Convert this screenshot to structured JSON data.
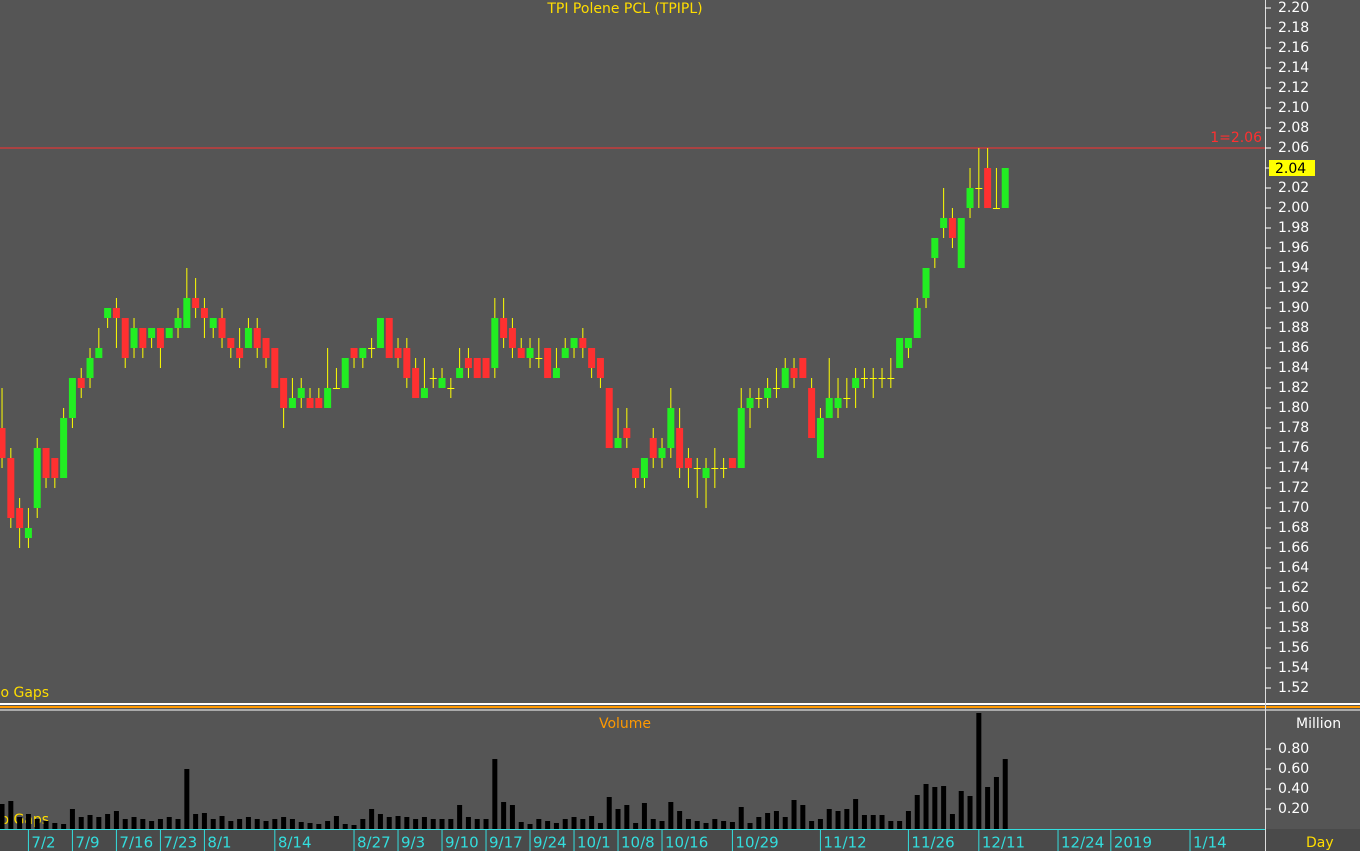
{
  "chart_data": [
    {
      "type": "candlestick",
      "title": "TPI Polene PCL (TPIPL)",
      "x": [
        0,
        1,
        2,
        3,
        4,
        5,
        6,
        7,
        8,
        9,
        10,
        11,
        12,
        13,
        14,
        15,
        16,
        17,
        18,
        19,
        20,
        21,
        22,
        23,
        24,
        25,
        26,
        27,
        28,
        29,
        30,
        31,
        32,
        33,
        34,
        35,
        36,
        37,
        38,
        39,
        40,
        41,
        42,
        43,
        44,
        45,
        46,
        47,
        48,
        49,
        50,
        51,
        52,
        53,
        54,
        55,
        56,
        57,
        58,
        59,
        60,
        61,
        62,
        63,
        64,
        65,
        66,
        67,
        68,
        69,
        70,
        71,
        72,
        73,
        74,
        75,
        76,
        77,
        78,
        79,
        80,
        81,
        82,
        83,
        84,
        85,
        86,
        87,
        88,
        89,
        90,
        91,
        92,
        93,
        94,
        95,
        96,
        97,
        98,
        99,
        100,
        101,
        102,
        103,
        104,
        105,
        106,
        107,
        108,
        109,
        110,
        111,
        112,
        113,
        114
      ],
      "open": [
        1.78,
        1.75,
        1.7,
        1.67,
        1.7,
        1.76,
        1.75,
        1.73,
        1.79,
        1.83,
        1.83,
        1.85,
        1.89,
        1.9,
        1.89,
        1.86,
        1.88,
        1.87,
        1.88,
        1.87,
        1.88,
        1.88,
        1.91,
        1.9,
        1.88,
        1.89,
        1.87,
        1.86,
        1.86,
        1.88,
        1.87,
        1.86,
        1.83,
        1.8,
        1.81,
        1.81,
        1.81,
        1.8,
        1.82,
        1.82,
        1.86,
        1.85,
        1.86,
        1.86,
        1.89,
        1.86,
        1.86,
        1.84,
        1.81,
        1.83,
        1.82,
        1.82,
        1.83,
        1.85,
        1.85,
        1.85,
        1.84,
        1.89,
        1.88,
        1.86,
        1.85,
        1.85,
        1.86,
        1.83,
        1.85,
        1.86,
        1.87,
        1.86,
        1.85,
        1.82,
        1.76,
        1.78,
        1.74,
        1.73,
        1.77,
        1.75,
        1.76,
        1.78,
        1.75,
        1.74,
        1.73,
        1.74,
        1.74,
        1.75,
        1.74,
        1.8,
        1.81,
        1.81,
        1.82,
        1.82,
        1.84,
        1.85,
        1.82,
        1.75,
        1.79,
        1.8,
        1.81,
        1.82,
        1.83,
        1.83,
        1.83,
        1.83,
        1.84,
        1.86,
        1.87,
        1.91,
        1.95,
        1.98,
        1.99,
        1.94,
        2.0,
        2.02,
        2.04,
        2.0,
        2.0
      ],
      "high": [
        1.82,
        1.76,
        1.71,
        1.7,
        1.77,
        1.76,
        1.75,
        1.8,
        1.83,
        1.84,
        1.86,
        1.88,
        1.9,
        1.91,
        1.89,
        1.89,
        1.88,
        1.88,
        1.88,
        1.88,
        1.9,
        1.94,
        1.93,
        1.91,
        1.89,
        1.9,
        1.87,
        1.88,
        1.89,
        1.89,
        1.87,
        1.86,
        1.83,
        1.83,
        1.83,
        1.82,
        1.82,
        1.86,
        1.84,
        1.85,
        1.86,
        1.86,
        1.87,
        1.89,
        1.89,
        1.87,
        1.87,
        1.85,
        1.85,
        1.84,
        1.84,
        1.83,
        1.86,
        1.86,
        1.85,
        1.85,
        1.91,
        1.91,
        1.89,
        1.87,
        1.87,
        1.87,
        1.86,
        1.86,
        1.87,
        1.87,
        1.88,
        1.86,
        1.85,
        1.82,
        1.8,
        1.8,
        1.74,
        1.75,
        1.78,
        1.77,
        1.82,
        1.8,
        1.76,
        1.75,
        1.75,
        1.76,
        1.75,
        1.75,
        1.82,
        1.82,
        1.82,
        1.83,
        1.84,
        1.85,
        1.85,
        1.85,
        1.83,
        1.8,
        1.85,
        1.83,
        1.83,
        1.84,
        1.84,
        1.84,
        1.84,
        1.85,
        1.87,
        1.87,
        1.91,
        1.94,
        1.97,
        2.02,
        2.0,
        1.99,
        2.04,
        2.06,
        2.06,
        2.04,
        2.04
      ],
      "low": [
        1.74,
        1.68,
        1.66,
        1.66,
        1.69,
        1.72,
        1.72,
        1.73,
        1.78,
        1.81,
        1.82,
        1.85,
        1.88,
        1.86,
        1.84,
        1.85,
        1.85,
        1.86,
        1.84,
        1.87,
        1.87,
        1.88,
        1.89,
        1.87,
        1.87,
        1.86,
        1.85,
        1.84,
        1.86,
        1.85,
        1.84,
        1.82,
        1.78,
        1.8,
        1.8,
        1.8,
        1.8,
        1.8,
        1.82,
        1.82,
        1.84,
        1.84,
        1.85,
        1.86,
        1.85,
        1.84,
        1.82,
        1.81,
        1.81,
        1.82,
        1.82,
        1.81,
        1.83,
        1.83,
        1.83,
        1.83,
        1.83,
        1.86,
        1.85,
        1.85,
        1.84,
        1.84,
        1.83,
        1.83,
        1.85,
        1.85,
        1.85,
        1.83,
        1.82,
        1.76,
        1.76,
        1.76,
        1.72,
        1.72,
        1.74,
        1.74,
        1.75,
        1.73,
        1.72,
        1.71,
        1.7,
        1.72,
        1.73,
        1.74,
        1.74,
        1.78,
        1.8,
        1.8,
        1.81,
        1.82,
        1.82,
        1.83,
        1.77,
        1.75,
        1.79,
        1.79,
        1.8,
        1.8,
        1.82,
        1.81,
        1.82,
        1.82,
        1.84,
        1.85,
        1.87,
        1.9,
        1.94,
        1.97,
        1.96,
        1.94,
        1.99,
        2.0,
        2.0,
        2.0,
        2.0
      ],
      "close": [
        1.75,
        1.69,
        1.68,
        1.68,
        1.76,
        1.73,
        1.73,
        1.79,
        1.83,
        1.82,
        1.85,
        1.86,
        1.9,
        1.89,
        1.85,
        1.88,
        1.86,
        1.88,
        1.86,
        1.88,
        1.89,
        1.91,
        1.9,
        1.89,
        1.89,
        1.87,
        1.86,
        1.85,
        1.88,
        1.86,
        1.85,
        1.82,
        1.8,
        1.81,
        1.82,
        1.8,
        1.8,
        1.82,
        1.82,
        1.85,
        1.85,
        1.86,
        1.86,
        1.89,
        1.85,
        1.85,
        1.83,
        1.81,
        1.82,
        1.83,
        1.83,
        1.82,
        1.84,
        1.84,
        1.83,
        1.83,
        1.89,
        1.87,
        1.86,
        1.85,
        1.86,
        1.85,
        1.83,
        1.84,
        1.86,
        1.87,
        1.86,
        1.84,
        1.83,
        1.76,
        1.77,
        1.77,
        1.73,
        1.75,
        1.75,
        1.76,
        1.8,
        1.74,
        1.74,
        1.74,
        1.74,
        1.74,
        1.74,
        1.74,
        1.8,
        1.81,
        1.81,
        1.82,
        1.82,
        1.84,
        1.83,
        1.83,
        1.77,
        1.79,
        1.81,
        1.81,
        1.81,
        1.83,
        1.83,
        1.83,
        1.83,
        1.83,
        1.87,
        1.87,
        1.9,
        1.94,
        1.97,
        1.99,
        1.97,
        1.99,
        2.02,
        2.02,
        2.0,
        2.0,
        2.04
      ],
      "up_color": "#22ee22",
      "down_color": "#ff3030",
      "wick_color": "#ffff00",
      "xlim": [
        -0.23,
        143.52
      ],
      "ylim": [
        1.505,
        2.208
      ],
      "yticks": [
        1.52,
        1.54,
        1.56,
        1.58,
        {
          "value": 1.6,
          "label": "1.60"
        },
        1.62,
        1.64,
        1.66,
        1.68,
        {
          "value": 1.7,
          "label": "1.70"
        },
        1.72,
        1.74,
        1.76,
        1.78,
        {
          "value": 1.8,
          "label": "1.80"
        },
        1.82,
        1.84,
        1.86,
        1.88,
        {
          "value": 1.9,
          "label": "1.90"
        },
        1.92,
        1.94,
        1.96,
        1.98,
        {
          "value": 2,
          "label": "2.00"
        },
        2.02,
        2.04,
        2.06,
        2.08,
        {
          "value": 2.1,
          "label": "2.10"
        },
        2.12,
        2.14,
        2.16,
        2.18,
        {
          "value": 2.2,
          "label": "2.20"
        }
      ],
      "reference_line": {
        "value": 2.06,
        "label": "1=2.06",
        "color": "#ff3030"
      },
      "note": "No Gaps"
    },
    {
      "type": "bar",
      "title": "Volume",
      "y_label": "Million",
      "x_label": "Day",
      "color": "#000000",
      "values": [
        0.25,
        0.28,
        0.12,
        0.15,
        0.1,
        0.08,
        0.06,
        0.05,
        0.2,
        0.12,
        0.14,
        0.12,
        0.15,
        0.18,
        0.1,
        0.12,
        0.1,
        0.08,
        0.1,
        0.12,
        0.1,
        0.6,
        0.15,
        0.16,
        0.1,
        0.13,
        0.08,
        0.1,
        0.12,
        0.1,
        0.08,
        0.1,
        0.12,
        0.1,
        0.07,
        0.06,
        0.05,
        0.08,
        0.13,
        0.05,
        0.04,
        0.1,
        0.2,
        0.15,
        0.12,
        0.13,
        0.12,
        0.1,
        0.12,
        0.1,
        0.1,
        0.1,
        0.24,
        0.12,
        0.1,
        0.1,
        0.7,
        0.27,
        0.24,
        0.07,
        0.05,
        0.1,
        0.08,
        0.06,
        0.1,
        0.12,
        0.1,
        0.13,
        0.06,
        0.32,
        0.2,
        0.24,
        0.06,
        0.26,
        0.1,
        0.08,
        0.27,
        0.18,
        0.1,
        0.08,
        0.06,
        0.1,
        0.08,
        0.07,
        0.22,
        0.06,
        0.12,
        0.16,
        0.18,
        0.12,
        0.29,
        0.24,
        0.08,
        0.1,
        0.2,
        0.18,
        0.2,
        0.3,
        0.14,
        0.14,
        0.14,
        0.08,
        0.08,
        0.18,
        0.34,
        0.45,
        0.42,
        0.43,
        0.15,
        0.38,
        0.33,
        1.16,
        0.42,
        0.52,
        0.7
      ],
      "ylim": [
        0,
        1.18
      ],
      "yticks": [
        {
          "value": 0.2,
          "label": "0.20"
        },
        {
          "value": 0.4,
          "label": "0.40"
        },
        {
          "value": 0.6,
          "label": "0.60"
        },
        {
          "value": 0.8,
          "label": "0.80"
        }
      ],
      "xticks": [
        {
          "value": 3,
          "label": "7/2"
        },
        {
          "value": 8,
          "label": "7/9"
        },
        {
          "value": 13,
          "label": "7/16"
        },
        {
          "value": 18,
          "label": "7/23"
        },
        {
          "value": 23,
          "label": "8/1"
        },
        {
          "value": 31,
          "label": "8/14"
        },
        {
          "value": 40,
          "label": "8/27"
        },
        {
          "value": 45,
          "label": "9/3"
        },
        {
          "value": 50,
          "label": "9/10"
        },
        {
          "value": 55,
          "label": "9/17"
        },
        {
          "value": 60,
          "label": "9/24"
        },
        {
          "value": 65,
          "label": "10/1"
        },
        {
          "value": 70,
          "label": "10/8"
        },
        {
          "value": 75,
          "label": "10/16"
        },
        {
          "value": 83,
          "label": "10/29"
        },
        {
          "value": 93,
          "label": "11/12"
        },
        {
          "value": 103,
          "label": "11/26"
        },
        {
          "value": 111,
          "label": "12/11"
        },
        {
          "value": 120,
          "label": "12/24"
        },
        {
          "value": 126,
          "label": "2019"
        },
        {
          "value": 135,
          "label": "1/14"
        }
      ]
    }
  ]
}
